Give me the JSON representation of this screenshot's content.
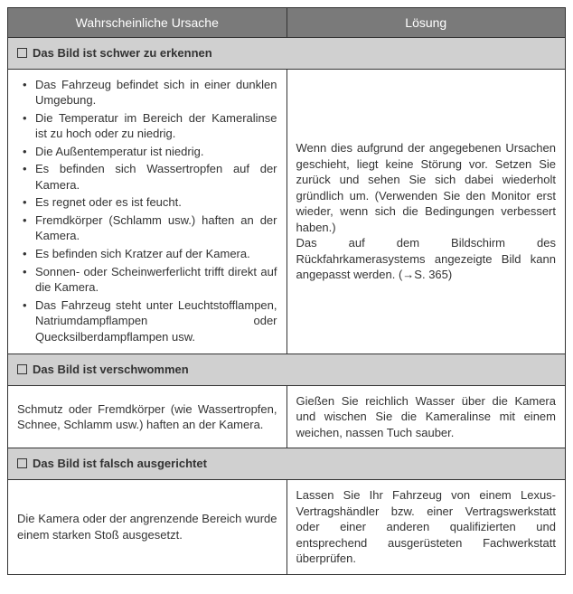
{
  "colors": {
    "header_bg": "#7a7a7a",
    "header_text": "#ffffff",
    "section_bg": "#d0d0d0",
    "border": "#333333",
    "text": "#333333",
    "background": "#ffffff"
  },
  "headers": {
    "cause": "Wahrscheinliche Ursache",
    "solution": "Lösung"
  },
  "sections": [
    {
      "title": "Das Bild ist schwer zu erkennen",
      "causes": [
        "Das Fahrzeug befindet sich in einer dunklen Umgebung.",
        "Die Temperatur im Bereich der Kameralinse ist zu hoch oder zu niedrig.",
        "Die Außentemperatur ist niedrig.",
        "Es befinden sich Wassertropfen auf der Kamera.",
        "Es regnet oder es ist feucht.",
        "Fremdkörper (Schlamm usw.) haften an der Kamera.",
        "Es befinden sich Kratzer auf der Kamera.",
        "Sonnen- oder Scheinwerferlicht trifft direkt auf die Kamera.",
        "Das Fahrzeug steht unter Leuchtstofflampen, Natriumdampflampen oder Quecksilberdampflampen usw."
      ],
      "solution_p1": "Wenn dies aufgrund der angegebenen Ursachen geschieht, liegt keine Störung vor. Setzen Sie zurück und sehen Sie sich dabei wiederholt gründlich um. (Verwenden Sie den Monitor erst wieder, wenn sich die Bedingungen verbessert haben.)",
      "solution_p2": "Das auf dem Bildschirm des Rückfahrkamerasystems angezeigte Bild kann angepasst werden. (→S. 365)"
    },
    {
      "title": "Das Bild ist verschwommen",
      "cause_text": "Schmutz oder Fremdkörper (wie Wassertropfen, Schnee, Schlamm usw.) haften an der Kamera.",
      "solution": "Gießen Sie reichlich Wasser über die Kamera und wischen Sie die Kameralinse mit einem weichen, nassen Tuch sauber."
    },
    {
      "title": "Das Bild ist falsch ausgerichtet",
      "cause_text": "Die Kamera oder der angrenzende Bereich wurde einem starken Stoß ausgesetzt.",
      "solution": "Lassen Sie Ihr Fahrzeug von einem Lexus-Vertragshändler bzw. einer Vertragswerkstatt oder einer anderen qualifizierten und entsprechend ausgerüsteten Fachwerkstatt überprüfen."
    }
  ]
}
